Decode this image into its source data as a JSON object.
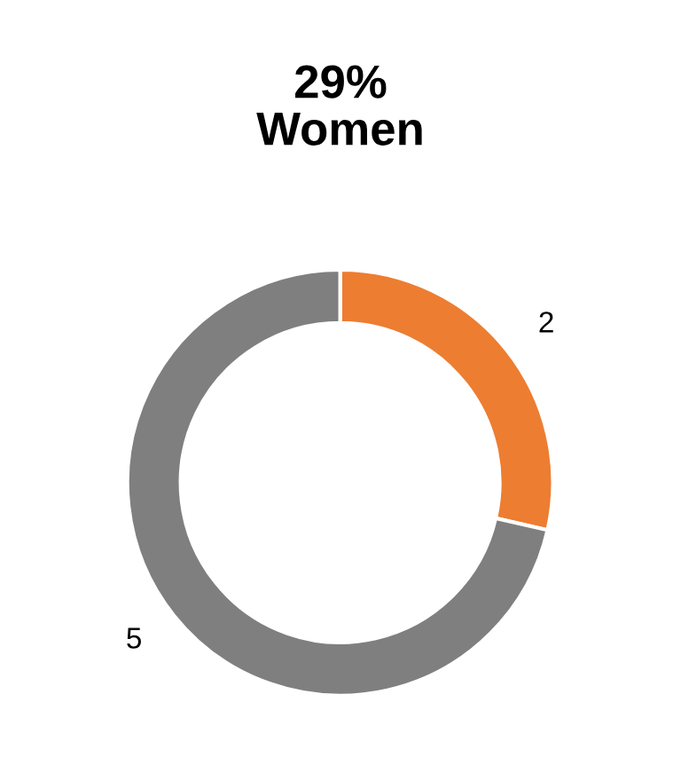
{
  "chart_data": {
    "type": "donut",
    "title": "29%\nWomen",
    "categories": [
      null,
      null
    ],
    "values": [
      2,
      5
    ],
    "colors": [
      "#ed7d31",
      "#7f7f7f"
    ],
    "data_labels": true
  }
}
